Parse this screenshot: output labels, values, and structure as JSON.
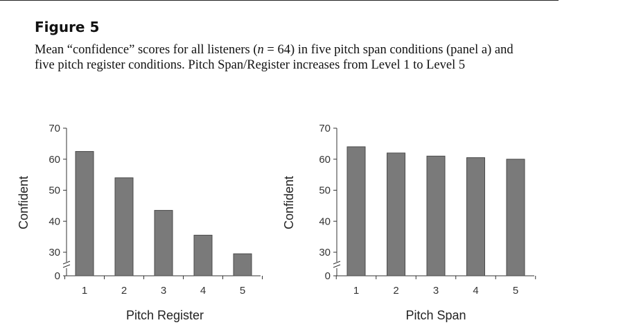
{
  "figure": {
    "label": "Figure 5",
    "caption_pre": "Mean “confidence” scores for all listeners (",
    "caption_n": "n",
    "caption_post": " = 64) in five pitch span conditions (panel a) and",
    "caption_line2": "five pitch register conditions. Pitch Span/Register increases from Level 1 to Level 5"
  },
  "chart_data": [
    {
      "type": "bar",
      "title": "",
      "xlabel": "Pitch Register",
      "ylabel": "Confident",
      "categories": [
        "1",
        "2",
        "3",
        "4",
        "5"
      ],
      "values": [
        62.5,
        54,
        43.5,
        35.5,
        29.5
      ],
      "yticks": [
        0,
        30,
        40,
        50,
        60,
        70
      ],
      "ylim": [
        0,
        70
      ],
      "axis_break": true,
      "bar_color": "#7a7a7a",
      "grid": false
    },
    {
      "type": "bar",
      "title": "",
      "xlabel": "Pitch Span",
      "ylabel": "Confident",
      "categories": [
        "1",
        "2",
        "3",
        "4",
        "5"
      ],
      "values": [
        64,
        62,
        61,
        60.5,
        60
      ],
      "yticks": [
        0,
        30,
        40,
        50,
        60,
        70
      ],
      "ylim": [
        0,
        70
      ],
      "axis_break": true,
      "bar_color": "#7a7a7a",
      "grid": false
    }
  ]
}
